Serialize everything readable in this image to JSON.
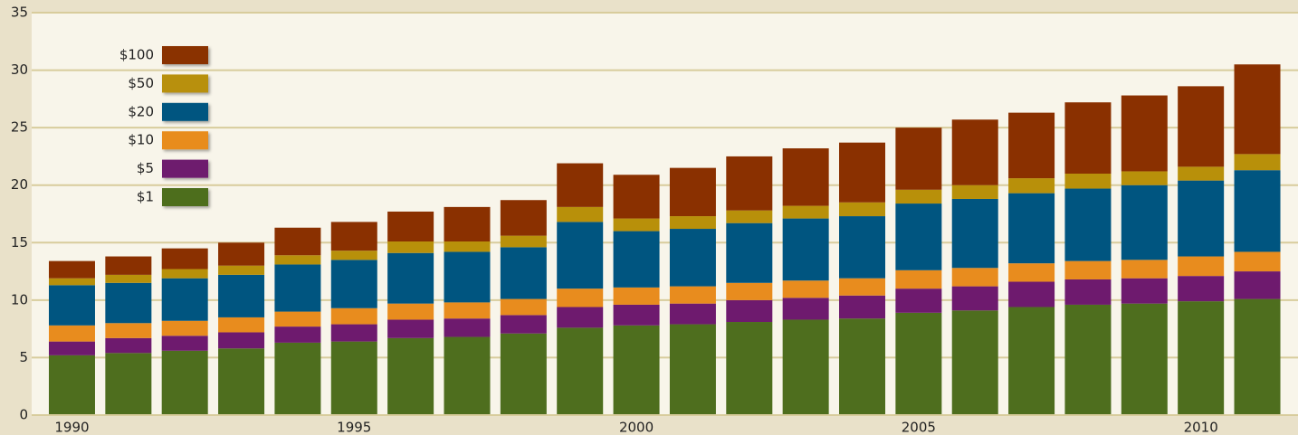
{
  "chart_data": {
    "type": "stacked_bar",
    "categories": [
      "1990",
      null,
      null,
      null,
      null,
      "1995",
      null,
      null,
      null,
      null,
      "2000",
      null,
      null,
      null,
      null,
      "2005",
      null,
      null,
      null,
      null,
      "2010",
      null
    ],
    "series": [
      {
        "name": "$1",
        "color": "#4e6e1e",
        "values": [
          5.2,
          5.4,
          5.6,
          5.8,
          6.3,
          6.4,
          6.7,
          6.8,
          7.1,
          7.6,
          7.8,
          7.9,
          8.1,
          8.3,
          8.4,
          8.9,
          9.1,
          9.4,
          9.6,
          9.7,
          9.9,
          10.1
        ]
      },
      {
        "name": "$5",
        "color": "#6e1a6e",
        "values": [
          1.2,
          1.3,
          1.3,
          1.4,
          1.4,
          1.5,
          1.6,
          1.6,
          1.6,
          1.8,
          1.8,
          1.8,
          1.9,
          1.9,
          2.0,
          2.1,
          2.1,
          2.2,
          2.2,
          2.2,
          2.2,
          2.4
        ]
      },
      {
        "name": "$10",
        "color": "#e88c1e",
        "values": [
          1.4,
          1.3,
          1.3,
          1.3,
          1.3,
          1.4,
          1.4,
          1.4,
          1.4,
          1.6,
          1.5,
          1.5,
          1.5,
          1.5,
          1.5,
          1.6,
          1.6,
          1.6,
          1.6,
          1.6,
          1.7,
          1.7
        ]
      },
      {
        "name": "$20",
        "color": "#005580",
        "values": [
          3.5,
          3.5,
          3.7,
          3.7,
          4.1,
          4.2,
          4.4,
          4.4,
          4.5,
          5.8,
          4.9,
          5.0,
          5.2,
          5.4,
          5.4,
          5.8,
          6.0,
          6.1,
          6.3,
          6.5,
          6.6,
          7.1
        ]
      },
      {
        "name": "$50",
        "color": "#b8900a",
        "values": [
          0.6,
          0.7,
          0.8,
          0.8,
          0.8,
          0.8,
          1.0,
          0.9,
          1.0,
          1.3,
          1.1,
          1.1,
          1.1,
          1.1,
          1.2,
          1.2,
          1.2,
          1.3,
          1.3,
          1.2,
          1.2,
          1.4
        ]
      },
      {
        "name": "$100",
        "color": "#8a3000",
        "values": [
          1.5,
          1.6,
          1.8,
          2.0,
          2.4,
          2.5,
          2.6,
          3.0,
          3.1,
          3.8,
          3.8,
          4.2,
          4.7,
          5.0,
          5.2,
          5.4,
          5.7,
          5.7,
          6.2,
          6.6,
          7.0,
          7.8
        ]
      }
    ],
    "ylim": [
      0,
      35
    ],
    "yticks": [
      0,
      5,
      10,
      15,
      20,
      25,
      30,
      35
    ],
    "grid": true,
    "legend": "upper left"
  }
}
